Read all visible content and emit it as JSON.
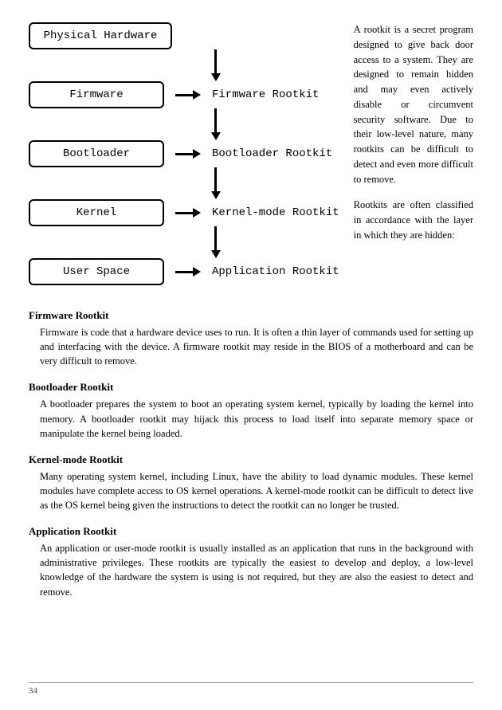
{
  "diagram": {
    "layers": [
      {
        "label": "Physical Hardware",
        "rootkit": null
      },
      {
        "label": "Firmware",
        "rootkit": "Firmware Rootkit"
      },
      {
        "label": "Bootloader",
        "rootkit": "Bootloader Rootkit"
      },
      {
        "label": "Kernel",
        "rootkit": "Kernel-mode Rootkit"
      },
      {
        "label": "User Space",
        "rootkit": "Application Rootkit"
      }
    ],
    "box_border_color": "#000000",
    "box_border_radius": 6,
    "font_family": "Courier New"
  },
  "intro": {
    "p1": "A rootkit is a secret program designed to give back door access to a system. They are designed to remain hidden and may even actively disable or circumvent security software. Due to their low-level nature, many rootkits can be difficult to detect and even more difficult to remove.",
    "p2": "Rootkits are often classified in accordance with the layer in which they are hidden:"
  },
  "sections": [
    {
      "title": "Firmware Rootkit",
      "body": "Firmware is code that a hardware device uses to run. It is often a thin layer of commands used for setting up and interfacing with the device. A firmware rootkit may reside in the BIOS of a motherboard and can be very difficult to remove."
    },
    {
      "title": "Bootloader Rootkit",
      "body": "A bootloader prepares the system to boot an operating system kernel, typically by loading the kernel into memory. A bootloader rootkit may hijack this process to load itself into separate memory space or manipulate the kernel being loaded."
    },
    {
      "title": "Kernel-mode Rootkit",
      "body": "Many operating system kernel, including Linux, have the ability to load dynamic modules. These kernel modules have complete access to OS kernel operations. A kernel-mode rootkit can be difficult to detect live as the OS kernel being given the instructions to detect the rootkit can no longer be trusted."
    },
    {
      "title": "Application Rootkit",
      "body": "An application or user-mode rootkit is usually installed as an application that runs in the background with administrative privileges. These rootkits are typically the easiest to develop and deploy, a low-level knowledge of the hardware the system is using is not required, but they are also the easiest to detect and remove."
    }
  ],
  "page_number": "34",
  "colors": {
    "text": "#000000",
    "background": "#ffffff",
    "footer_border": "#aaaaaa"
  }
}
